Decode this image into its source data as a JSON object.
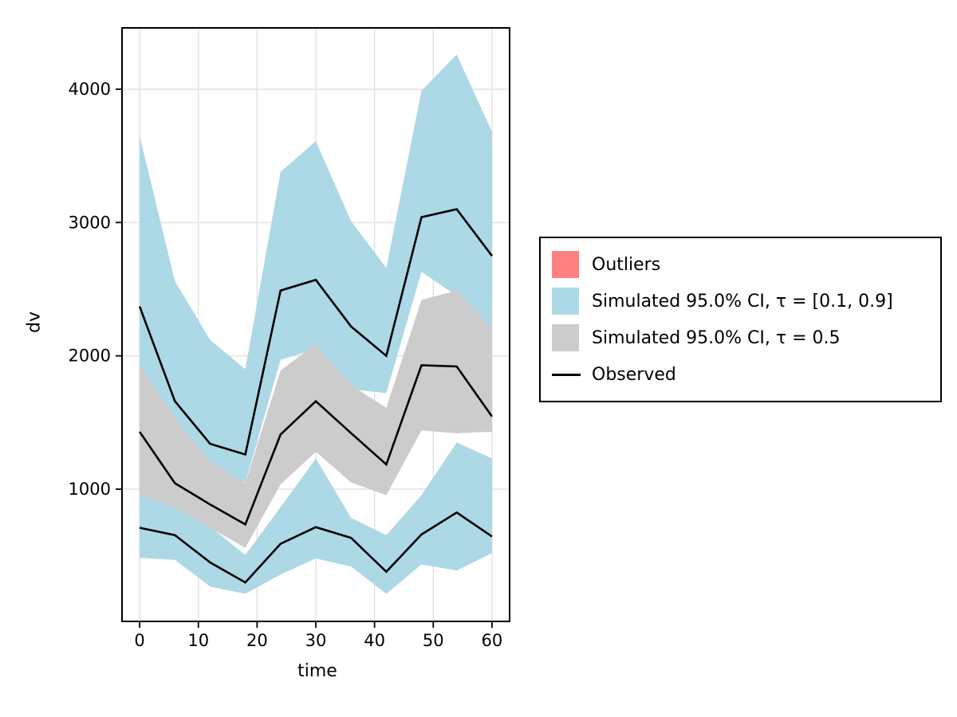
{
  "axes": {
    "xlabel": "time",
    "ylabel": "dv",
    "x_ticks": [
      0,
      10,
      20,
      30,
      40,
      50,
      60
    ],
    "y_ticks": [
      1000,
      2000,
      3000,
      4000
    ]
  },
  "legend": {
    "items": [
      {
        "label": "Outliers",
        "type": "patch",
        "color": "#FF8080"
      },
      {
        "label": "Simulated 95.0% CI, τ = [0.1, 0.9]",
        "type": "patch",
        "color": "#ADD8E6"
      },
      {
        "label": "Simulated 95.0% CI, τ = 0.5",
        "type": "patch",
        "color": "#CCCCCC"
      },
      {
        "label": "Observed",
        "type": "line",
        "color": "#000000"
      }
    ]
  },
  "chart_data": {
    "type": "area",
    "title": "",
    "xlabel": "time",
    "ylabel": "dv",
    "xlim": [
      -3,
      63
    ],
    "ylim": [
      8,
      4460
    ],
    "grid": true,
    "legend_position": "right",
    "x": [
      0,
      6,
      12,
      18,
      24,
      30,
      36,
      42,
      48,
      54,
      60
    ],
    "bands": [
      {
        "name": "Simulated 95.0% CI, τ = [0.1, 0.9] — upper percentile band",
        "color": "#ADD8E6",
        "upper": [
          3650,
          2560,
          2120,
          1900,
          3380,
          3610,
          3010,
          2660,
          3990,
          4260,
          3680
        ],
        "lower": [
          1900,
          1500,
          1150,
          1050,
          1970,
          2050,
          1750,
          1720,
          2630,
          2450,
          2200
        ]
      },
      {
        "name": "Simulated 95.0% CI, τ = [0.1, 0.9] — lower percentile band",
        "color": "#ADD8E6",
        "upper": [
          1000,
          900,
          720,
          505,
          865,
          1230,
          785,
          655,
          955,
          1350,
          1230
        ],
        "lower": [
          485,
          470,
          270,
          215,
          360,
          480,
          420,
          215,
          435,
          390,
          520
        ]
      },
      {
        "name": "Simulated 95.0% CI, τ = 0.5 — median band",
        "color": "#CCCCCC",
        "upper": [
          1930,
          1530,
          1210,
          1045,
          1890,
          2090,
          1780,
          1610,
          2420,
          2490,
          2210
        ],
        "lower": [
          960,
          860,
          710,
          560,
          1035,
          1280,
          1050,
          955,
          1440,
          1420,
          1430
        ]
      }
    ],
    "lines": [
      {
        "name": "Observed — upper percentile",
        "color": "#000000",
        "values": [
          2370,
          1660,
          1340,
          1260,
          2490,
          2570,
          2220,
          2000,
          3040,
          3100,
          2750
        ]
      },
      {
        "name": "Observed — median",
        "color": "#000000",
        "values": [
          1430,
          1045,
          885,
          735,
          1410,
          1660,
          1420,
          1185,
          1930,
          1920,
          1545
        ]
      },
      {
        "name": "Observed — lower percentile",
        "color": "#000000",
        "values": [
          710,
          655,
          450,
          300,
          590,
          715,
          635,
          380,
          660,
          825,
          645
        ]
      }
    ],
    "style": {
      "grid_color": "#e3e3e3",
      "spine_color": "#000000",
      "tick_label_size": 21,
      "observed_line_width": 2.6
    }
  }
}
